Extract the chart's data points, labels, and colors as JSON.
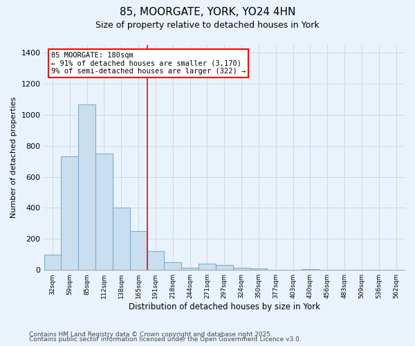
{
  "title_line1": "85, MOORGATE, YORK, YO24 4HN",
  "title_line2": "Size of property relative to detached houses in York",
  "xlabel": "Distribution of detached houses by size in York",
  "ylabel": "Number of detached properties",
  "categories": [
    "32sqm",
    "59sqm",
    "85sqm",
    "112sqm",
    "138sqm",
    "165sqm",
    "191sqm",
    "218sqm",
    "244sqm",
    "271sqm",
    "297sqm",
    "324sqm",
    "350sqm",
    "377sqm",
    "403sqm",
    "430sqm",
    "456sqm",
    "483sqm",
    "509sqm",
    "536sqm",
    "562sqm"
  ],
  "values": [
    100,
    730,
    1065,
    750,
    400,
    250,
    120,
    50,
    15,
    40,
    30,
    15,
    10,
    0,
    0,
    5,
    0,
    0,
    0,
    0,
    0
  ],
  "bar_color": "#c9dff0",
  "bar_edge_color": "#7aabcf",
  "bar_linewidth": 0.8,
  "grid_color": "#c8d8e8",
  "background_color": "#eaf3fb",
  "annotation_text": "85 MOORGATE: 180sqm\n← 91% of detached houses are smaller (3,170)\n9% of semi-detached houses are larger (322) →",
  "annotation_box_color": "white",
  "annotation_box_edge": "red",
  "red_line_x": 5.5,
  "ylim": [
    0,
    1450
  ],
  "footnote1": "Contains HM Land Registry data © Crown copyright and database right 2025.",
  "footnote2": "Contains public sector information licensed under the Open Government Licence v3.0.",
  "title_fontsize": 11,
  "subtitle_fontsize": 9,
  "xlabel_fontsize": 8.5,
  "ylabel_fontsize": 8,
  "tick_fontsize": 6.5,
  "footnote_fontsize": 6.5,
  "annot_fontsize": 7.5
}
